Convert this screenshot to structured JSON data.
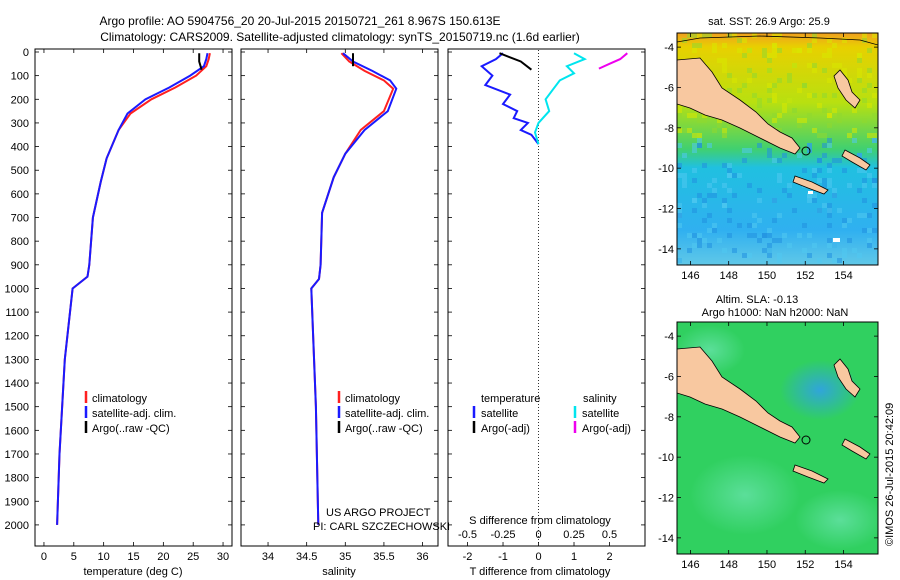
{
  "header": {
    "title_line1": "Argo profile: AO 5904756_20 20-Jul-2015 20150721_261 8.967S 150.613E",
    "title_line2": "Climatology: CARS2009. Satellite-adjusted climatology: synTS_20150719.nc (1.6d earlier)"
  },
  "depth_axis": {
    "ticks": [
      0,
      100,
      200,
      300,
      400,
      500,
      600,
      700,
      800,
      900,
      1000,
      1100,
      1200,
      1300,
      1400,
      1500,
      1600,
      1700,
      1800,
      1900,
      2000
    ],
    "range": [
      0,
      2030
    ]
  },
  "chart_data": [
    {
      "type": "line",
      "id": "temperature",
      "xlabel": "temperature (deg C)",
      "xlim": [
        -1.5,
        31.5
      ],
      "xticks": [
        0,
        5,
        10,
        15,
        20,
        25,
        30
      ],
      "ylim": [
        0,
        2030
      ],
      "series": [
        {
          "name": "climatology",
          "color": "#ff2020",
          "x": [
            27.8,
            27.6,
            27.2,
            25.5,
            22,
            18,
            14.5,
            12.5,
            10.5,
            9.5,
            8.2,
            7.6,
            7.3,
            4.8,
            3.5,
            2.6,
            2.2
          ],
          "y": [
            5,
            30,
            60,
            100,
            150,
            200,
            260,
            330,
            450,
            550,
            700,
            900,
            950,
            1000,
            1300,
            1700,
            2000
          ]
        },
        {
          "name": "satellite-adj. clim.",
          "color": "#1a1aff",
          "x": [
            27.4,
            27.2,
            26.8,
            24.5,
            21,
            17,
            14,
            12.5,
            10.5,
            9.5,
            8.2,
            7.6,
            7.3,
            4.8,
            3.5,
            2.6,
            2.2
          ],
          "y": [
            5,
            30,
            60,
            100,
            150,
            200,
            260,
            330,
            450,
            550,
            700,
            900,
            950,
            1000,
            1300,
            1700,
            2000
          ]
        },
        {
          "name": "Argo(..raw -QC)",
          "color": "#000000",
          "x": [
            26.0,
            26.0,
            26.4
          ],
          "y": [
            5,
            40,
            75
          ]
        }
      ],
      "legend": {
        "position": "lower-center",
        "entries": [
          "climatology",
          "satellite-adj. clim.",
          "Argo(..raw -QC)"
        ]
      }
    },
    {
      "type": "line",
      "id": "salinity",
      "xlabel": "salinity",
      "xlim": [
        33.65,
        36.2
      ],
      "xticks": [
        34,
        34.5,
        35,
        35.5,
        36
      ],
      "xtick_labels": [
        "34",
        "34.5",
        "35",
        "35.5",
        "36"
      ],
      "ylim": [
        0,
        2030
      ],
      "series": [
        {
          "name": "climatology",
          "color": "#ff2020",
          "x": [
            34.95,
            35.05,
            35.25,
            35.5,
            35.62,
            35.5,
            35.2,
            35.0,
            34.85,
            34.7,
            34.68,
            34.66,
            34.56,
            34.62,
            34.65
          ],
          "y": [
            5,
            40,
            80,
            120,
            155,
            250,
            330,
            430,
            530,
            680,
            900,
            960,
            1000,
            1500,
            2000
          ]
        },
        {
          "name": "satellite-adj. clim.",
          "color": "#1a1aff",
          "x": [
            34.97,
            35.1,
            35.35,
            35.58,
            35.66,
            35.55,
            35.25,
            35.0,
            34.85,
            34.7,
            34.68,
            34.66,
            34.56,
            34.62,
            34.65
          ],
          "y": [
            5,
            40,
            80,
            120,
            155,
            250,
            330,
            430,
            530,
            680,
            900,
            960,
            1000,
            1500,
            2000
          ]
        },
        {
          "name": "Argo(..raw -QC)",
          "color": "#000000",
          "x": [
            35.1,
            35.1
          ],
          "y": [
            5,
            60
          ]
        }
      ],
      "legend": {
        "position": "lower-center",
        "entries": [
          "climatology",
          "satellite-adj. clim.",
          "Argo(..raw -QC)"
        ]
      }
    },
    {
      "type": "line",
      "id": "difference",
      "xlabel": "T difference from climatology",
      "xlabel_top": "S difference from climatology",
      "xlim": [
        -2.55,
        3.0
      ],
      "xticks": [
        -2,
        -1,
        0,
        1,
        2
      ],
      "s_ticks": {
        "positions": [
          -2,
          -1,
          0,
          1,
          2
        ],
        "labels": [
          "-0.5",
          "-0.25",
          "0",
          "0.25",
          "0.5"
        ]
      },
      "ylim": [
        0,
        2030
      ],
      "series": [
        {
          "name": "temperature satellite",
          "color": "#1a1aff",
          "x": [
            -1.0,
            -1.2,
            -1.6,
            -1.3,
            -1.5,
            -0.8,
            -1.0,
            -0.6,
            -0.7,
            -0.3,
            -0.5,
            -0.2,
            -0.1,
            0.0
          ],
          "y": [
            5,
            30,
            60,
            100,
            140,
            180,
            220,
            250,
            280,
            300,
            330,
            350,
            370,
            390
          ]
        },
        {
          "name": "T Argo(-adj)",
          "color": "#000000",
          "x": [
            -1.1,
            -0.5,
            -0.2
          ],
          "y": [
            5,
            40,
            75
          ]
        },
        {
          "name": "salinity satellite",
          "color": "#00e5ee",
          "x": [
            1.0,
            1.3,
            0.8,
            1.0,
            0.6,
            0.4,
            0.2,
            0.3,
            0.0,
            -0.1,
            0.0
          ],
          "y": [
            5,
            30,
            60,
            90,
            120,
            160,
            200,
            250,
            300,
            340,
            390
          ]
        },
        {
          "name": "S Argo(-adj)",
          "color": "#ee00ee",
          "x": [
            2.5,
            2.3,
            2.0,
            1.7
          ],
          "y": [
            5,
            30,
            50,
            70
          ]
        }
      ],
      "legend_left_title": "temperature",
      "legend_right_title": "salinity",
      "legend_left": [
        "satellite",
        "Argo(-adj)"
      ],
      "legend_right": [
        "satellite",
        "Argo(-adj)"
      ]
    },
    {
      "type": "heatmap",
      "id": "sst_map",
      "title": "sat. SST: 26.9 Argo: 25.9",
      "xticks": [
        146,
        148,
        150,
        152,
        154
      ],
      "yticks": [
        -4,
        -6,
        -8,
        -10,
        -12,
        -14
      ],
      "xlim": [
        145.3,
        155.8
      ],
      "ylim": [
        -3.3,
        -14.8
      ],
      "argo_position": [
        150.613,
        -8.967
      ]
    },
    {
      "type": "heatmap",
      "id": "sla_map",
      "title": "Altim. SLA: -0.13",
      "subtitle": "Argo h1000: NaN h2000: NaN",
      "xticks": [
        146,
        148,
        150,
        152,
        154
      ],
      "yticks": [
        -4,
        -6,
        -8,
        -10,
        -12,
        -14
      ],
      "xlim": [
        145.3,
        155.8
      ],
      "ylim": [
        -3.3,
        -14.8
      ],
      "argo_position": [
        150.613,
        -8.967
      ]
    }
  ],
  "annotations": {
    "project": "US ARGO PROJECT",
    "pi": "PI: CARL SZCZECHOWSKI",
    "stamp": "©IMOS 26-Jul-2015 20:42:09"
  },
  "colors": {
    "land": "#f8c8a0",
    "sst_warm": "#c8e000",
    "sst_cool": "#30b8f0",
    "sla_field": "#30d060"
  }
}
